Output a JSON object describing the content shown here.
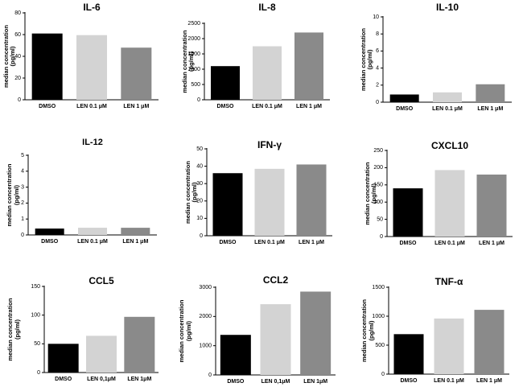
{
  "colors": {
    "dmso": "#000000",
    "low": "#d3d3d3",
    "high": "#8a8a8a"
  },
  "chart_data": [
    {
      "type": "bar",
      "title": "IL-6",
      "ylabel": "median concentration",
      "ylabel2": "(pg/ml)",
      "categories": [
        "DMSO",
        "LEN 0.1 μM",
        "LEN 1 μM"
      ],
      "values": [
        61,
        59.5,
        48
      ],
      "ylim": [
        0,
        80
      ],
      "yticks": [
        "0",
        "20",
        "40",
        "60",
        "80"
      ]
    },
    {
      "type": "bar",
      "title": "IL-8",
      "ylabel": "median concentration",
      "ylabel2": "(pg/ml)",
      "categories": [
        "DMSO",
        "LEN 0.1 μM",
        "LEN 1 μM"
      ],
      "values": [
        1100,
        1750,
        2200
      ],
      "ylim": [
        0,
        2500
      ],
      "yticks": [
        "0",
        "500",
        "1000",
        "1500",
        "2000",
        "2500"
      ]
    },
    {
      "type": "bar",
      "title": "IL-10",
      "ylabel": "median concentration",
      "ylabel2": "(pg/ml)",
      "categories": [
        "DMSO",
        "LEN 0.1 μM",
        "LEN 1 μM"
      ],
      "values": [
        0.9,
        1.15,
        2.1
      ],
      "ylim": [
        0,
        10
      ],
      "yticks": [
        "0",
        "2",
        "4",
        "6",
        "8",
        "10"
      ]
    },
    {
      "type": "bar",
      "title": "IL-12",
      "ylabel": "median concentration",
      "ylabel2": "(pg/ml)",
      "categories": [
        "DMSO",
        "LEN 0.1 μM",
        "LEN 1 μM"
      ],
      "values": [
        0.4,
        0.45,
        0.45
      ],
      "ylim": [
        0,
        5
      ],
      "yticks": [
        "0",
        "1",
        "2",
        "3",
        "4",
        "5"
      ]
    },
    {
      "type": "bar",
      "title": "IFN-γ",
      "ylabel": "median concentration",
      "ylabel2": "(pg/ml)",
      "categories": [
        "DMSO",
        "LEN 0.1 μM",
        "LEN 1 μM"
      ],
      "values": [
        36,
        38.5,
        41
      ],
      "ylim": [
        0,
        50
      ],
      "yticks": [
        "0",
        "10",
        "20",
        "30",
        "40",
        "50"
      ]
    },
    {
      "type": "bar",
      "title": "CXCL10",
      "ylabel": "median concentration",
      "ylabel2": "(pg/ml)",
      "categories": [
        "DMSO",
        "LEN 0.1 μM",
        "LEN 1 μM"
      ],
      "values": [
        140,
        193,
        180
      ],
      "ylim": [
        0,
        250
      ],
      "yticks": [
        "0",
        "50",
        "100",
        "150",
        "200",
        "250"
      ]
    },
    {
      "type": "bar",
      "title": "CCL5",
      "ylabel": "median concentration",
      "ylabel2": "(pg/ml)",
      "categories": [
        "DMSO",
        "LEN 0,1μM",
        "LEN 1μM"
      ],
      "values": [
        50,
        64,
        97
      ],
      "ylim": [
        0,
        150
      ],
      "yticks": [
        "0",
        "50",
        "100",
        "150"
      ]
    },
    {
      "type": "bar",
      "title": "CCL2",
      "ylabel": "median concentration",
      "ylabel2": "(pg/ml)",
      "categories": [
        "DMSO",
        "LEN 0,1μM",
        "LEN 1μM"
      ],
      "values": [
        1370,
        2420,
        2850
      ],
      "ylim": [
        0,
        3000
      ],
      "yticks": [
        "0",
        "1000",
        "2000",
        "3000"
      ]
    },
    {
      "type": "bar",
      "title": "TNF-α",
      "ylabel": "median concentration",
      "ylabel2": "(pg/ml)",
      "categories": [
        "DMSO",
        "LEN 0.1 μM",
        "LEN 1 μM"
      ],
      "values": [
        690,
        960,
        1110
      ],
      "ylim": [
        0,
        1500
      ],
      "yticks": [
        "0",
        "500",
        "1000",
        "1500"
      ]
    }
  ]
}
